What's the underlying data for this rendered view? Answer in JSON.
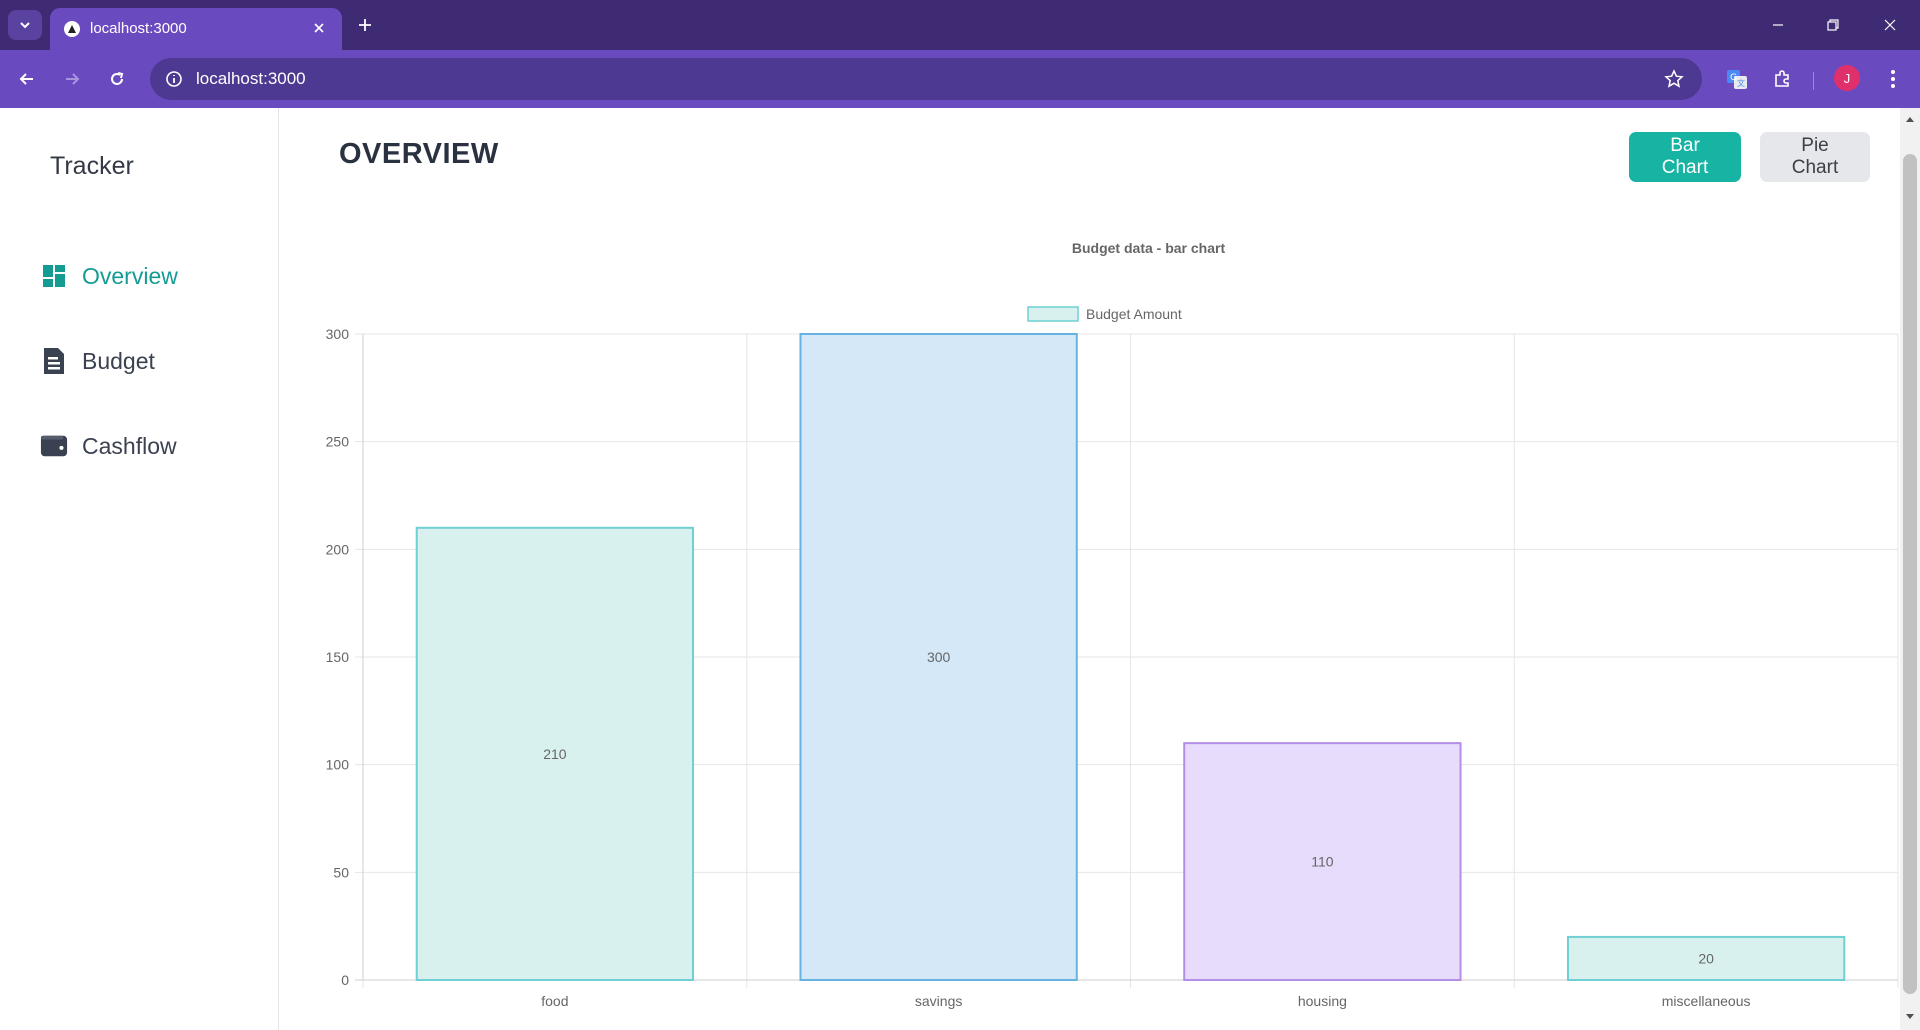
{
  "browser": {
    "tab_title": "localhost:3000",
    "url": "localhost:3000",
    "avatar_letter": "J"
  },
  "sidebar": {
    "brand": "Tracker",
    "items": [
      {
        "label": "Overview",
        "icon": "dashboard-icon",
        "active": true
      },
      {
        "label": "Budget",
        "icon": "document-icon",
        "active": false
      },
      {
        "label": "Cashflow",
        "icon": "wallet-icon",
        "active": false
      }
    ]
  },
  "main": {
    "title": "OVERVIEW",
    "bar_chart_button": "Bar Chart",
    "pie_chart_button": "Pie Chart"
  },
  "colors": {
    "accent": "#17b3a3",
    "nav_active": "#159c92",
    "chrome_dark": "#3e2b73",
    "chrome": "#6a4bbf"
  },
  "chart_data": {
    "type": "bar",
    "title": "Budget data - bar chart",
    "legend": "Budget Amount",
    "legend_placement": "top",
    "categories": [
      "food",
      "savings",
      "housing",
      "miscellaneous"
    ],
    "values": [
      210,
      300,
      110,
      20
    ],
    "data_labels": [
      "210",
      "300",
      "110",
      "20"
    ],
    "yticks": [
      0,
      50,
      100,
      150,
      200,
      250,
      300
    ],
    "ylim": [
      0,
      300
    ],
    "grid": true,
    "bar_fills": [
      "#d8f1ef",
      "#d4e8f8",
      "#e8dcfc",
      "#d8f1ef"
    ],
    "bar_strokes": [
      "#6fcfd3",
      "#66b2e0",
      "#b38ee8",
      "#6fcfd3"
    ]
  }
}
